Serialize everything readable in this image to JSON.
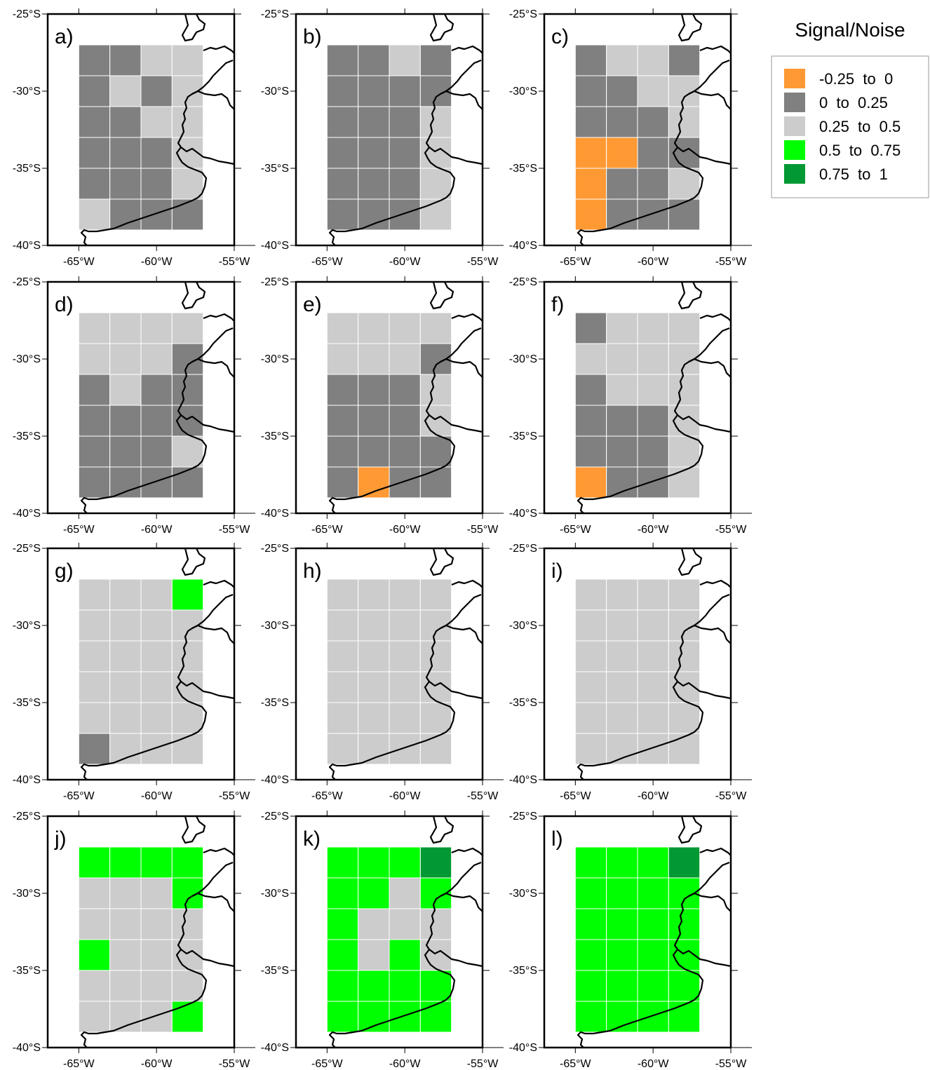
{
  "legend": {
    "title": "Signal/Noise",
    "entries": [
      {
        "label": "-0.25  to  0",
        "color": "#FF9933"
      },
      {
        "label": "0  to  0.25",
        "color": "#808080"
      },
      {
        "label": "0.25  to  0.5",
        "color": "#CCCCCC"
      },
      {
        "label": "0.5  to  0.75",
        "color": "#00FF00"
      },
      {
        "label": "0.75  to  1",
        "color": "#009933"
      }
    ]
  },
  "axes": {
    "x_ticks": [
      -65,
      -60,
      -55
    ],
    "x_tick_labels": [
      "-65°W",
      "-60°W",
      "-55°W"
    ],
    "y_ticks": [
      -25,
      -30,
      -35,
      -40
    ],
    "y_tick_labels": [
      "-25°S",
      "-30°S",
      "-35°S",
      "-40°S"
    ],
    "xlim": [
      -67,
      -55
    ],
    "ylim": [
      -40,
      -25
    ]
  },
  "grid": {
    "lon_edges": [
      -65,
      -63,
      -61,
      -59,
      -57
    ],
    "lat_edges": [
      -27,
      -29,
      -31,
      -33,
      -35,
      -37,
      -39
    ]
  },
  "chart_data": {
    "type": "heatmap",
    "category_colors": [
      "#FF9933",
      "#808080",
      "#CCCCCC",
      "#00FF00",
      "#009933"
    ],
    "category_labels": [
      "-0.25  to  0",
      "0  to  0.25",
      "0.25  to  0.5",
      "0.5  to  0.75",
      "0.75  to  1"
    ],
    "panels": [
      {
        "label": "a)",
        "cells": [
          [
            1,
            1,
            2,
            2
          ],
          [
            1,
            2,
            1,
            2
          ],
          [
            1,
            1,
            2,
            2
          ],
          [
            1,
            1,
            1,
            2
          ],
          [
            1,
            1,
            1,
            2
          ],
          [
            2,
            1,
            1,
            1
          ]
        ]
      },
      {
        "label": "b)",
        "cells": [
          [
            1,
            1,
            2,
            1
          ],
          [
            1,
            1,
            1,
            1
          ],
          [
            1,
            1,
            1,
            2
          ],
          [
            1,
            1,
            1,
            2
          ],
          [
            1,
            1,
            1,
            2
          ],
          [
            1,
            1,
            1,
            2
          ]
        ]
      },
      {
        "label": "c)",
        "cells": [
          [
            1,
            2,
            2,
            1
          ],
          [
            1,
            1,
            2,
            2
          ],
          [
            1,
            1,
            1,
            2
          ],
          [
            0,
            0,
            1,
            1
          ],
          [
            0,
            1,
            1,
            2
          ],
          [
            0,
            1,
            1,
            1
          ]
        ]
      },
      {
        "label": "d)",
        "cells": [
          [
            2,
            2,
            2,
            2
          ],
          [
            2,
            2,
            2,
            1
          ],
          [
            1,
            2,
            1,
            1
          ],
          [
            1,
            1,
            1,
            1
          ],
          [
            1,
            1,
            1,
            2
          ],
          [
            1,
            1,
            1,
            1
          ]
        ]
      },
      {
        "label": "e)",
        "cells": [
          [
            2,
            2,
            2,
            2
          ],
          [
            2,
            2,
            2,
            1
          ],
          [
            1,
            1,
            1,
            2
          ],
          [
            1,
            1,
            1,
            2
          ],
          [
            1,
            1,
            1,
            1
          ],
          [
            1,
            0,
            1,
            1
          ]
        ]
      },
      {
        "label": "f)",
        "cells": [
          [
            1,
            2,
            2,
            2
          ],
          [
            2,
            2,
            2,
            2
          ],
          [
            1,
            2,
            2,
            2
          ],
          [
            1,
            1,
            1,
            2
          ],
          [
            1,
            1,
            1,
            2
          ],
          [
            0,
            1,
            1,
            2
          ]
        ]
      },
      {
        "label": "g)",
        "cells": [
          [
            2,
            2,
            2,
            3
          ],
          [
            2,
            2,
            2,
            2
          ],
          [
            2,
            2,
            2,
            2
          ],
          [
            2,
            2,
            2,
            2
          ],
          [
            2,
            2,
            2,
            2
          ],
          [
            1,
            2,
            2,
            2
          ]
        ]
      },
      {
        "label": "h)",
        "cells": [
          [
            2,
            2,
            2,
            2
          ],
          [
            2,
            2,
            2,
            2
          ],
          [
            2,
            2,
            2,
            2
          ],
          [
            2,
            2,
            2,
            2
          ],
          [
            2,
            2,
            2,
            2
          ],
          [
            2,
            2,
            2,
            2
          ]
        ]
      },
      {
        "label": "i)",
        "cells": [
          [
            2,
            2,
            2,
            2
          ],
          [
            2,
            2,
            2,
            2
          ],
          [
            2,
            2,
            2,
            2
          ],
          [
            2,
            2,
            2,
            2
          ],
          [
            2,
            2,
            2,
            2
          ],
          [
            2,
            2,
            2,
            2
          ]
        ]
      },
      {
        "label": "j)",
        "cells": [
          [
            3,
            3,
            3,
            3
          ],
          [
            2,
            2,
            2,
            3
          ],
          [
            2,
            2,
            2,
            2
          ],
          [
            3,
            2,
            2,
            2
          ],
          [
            2,
            2,
            2,
            2
          ],
          [
            2,
            2,
            2,
            3
          ]
        ]
      },
      {
        "label": "k)",
        "cells": [
          [
            3,
            3,
            3,
            4
          ],
          [
            3,
            3,
            2,
            3
          ],
          [
            3,
            2,
            2,
            2
          ],
          [
            3,
            2,
            3,
            2
          ],
          [
            3,
            3,
            3,
            3
          ],
          [
            3,
            3,
            3,
            3
          ]
        ]
      },
      {
        "label": "l)",
        "cells": [
          [
            3,
            3,
            3,
            4
          ],
          [
            3,
            3,
            3,
            3
          ],
          [
            3,
            3,
            3,
            3
          ],
          [
            3,
            3,
            3,
            3
          ],
          [
            3,
            3,
            3,
            3
          ],
          [
            3,
            3,
            3,
            3
          ]
        ]
      }
    ]
  }
}
